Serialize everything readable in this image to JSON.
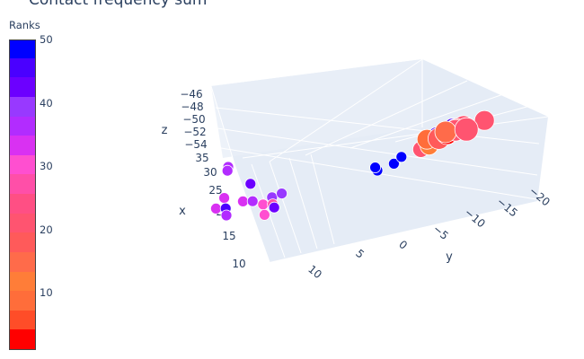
{
  "title": "Contact frequency sum",
  "colorbar": {
    "title": "Ranks",
    "ticks": [
      "50",
      "40",
      "30",
      "20",
      "10"
    ],
    "tick_values": [
      50,
      40,
      30,
      20,
      10
    ],
    "range": [
      1,
      50
    ],
    "colors": [
      "#ff0000",
      "#ff4d28",
      "#ff6d3a",
      "#ff7d38",
      "#ff6b4a",
      "#ff5a5a",
      "#ff5470",
      "#ff4f84",
      "#ff4fa8",
      "#ff4fd0",
      "#d931f2",
      "#b22cff",
      "#9839ff",
      "#6c00ff",
      "#4a00ff",
      "#0000ff"
    ]
  },
  "chart_data": {
    "type": "scatter3d",
    "title": "Contact frequency sum",
    "axes": {
      "x": {
        "label": "x",
        "ticks": [
          "10",
          "15",
          "20",
          "25",
          "30",
          "35"
        ]
      },
      "y": {
        "label": "y",
        "ticks": [
          "10",
          "5",
          "0",
          "−5",
          "−10",
          "−15",
          "−20"
        ]
      },
      "z": {
        "label": "z",
        "ticks": [
          "−46",
          "−48",
          "−50",
          "−52",
          "−54"
        ]
      }
    },
    "color_by": "Ranks",
    "points": [
      {
        "x": 10,
        "y": -12,
        "z": -46,
        "rank": 22,
        "size": 20
      },
      {
        "x": 11,
        "y": -13,
        "z": -47.5,
        "rank": 22,
        "size": 26
      },
      {
        "x": 11,
        "y": -15,
        "z": -47,
        "rank": 20,
        "size": 22
      },
      {
        "x": 12,
        "y": -10,
        "z": -48,
        "rank": 18,
        "size": 24
      },
      {
        "x": 13,
        "y": -11,
        "z": -48.6,
        "rank": 1,
        "size": 24
      },
      {
        "x": 13,
        "y": -12,
        "z": -48.4,
        "rank": 3,
        "size": 24
      },
      {
        "x": 13,
        "y": -13,
        "z": -49,
        "rank": 42,
        "size": 20
      },
      {
        "x": 14,
        "y": -10,
        "z": -49.4,
        "rank": 44,
        "size": 22
      },
      {
        "x": 14,
        "y": -12,
        "z": -49.6,
        "rank": 21,
        "size": 24
      },
      {
        "x": 15,
        "y": -11,
        "z": -50,
        "rank": 14,
        "size": 24
      },
      {
        "x": 15,
        "y": -13,
        "z": -50.2,
        "rank": 20,
        "size": 22
      },
      {
        "x": 16,
        "y": -9,
        "z": -51,
        "rank": 10,
        "size": 22
      },
      {
        "x": 16,
        "y": -11,
        "z": -51.4,
        "rank": 23,
        "size": 22
      },
      {
        "x": 17,
        "y": -12,
        "z": -51.8,
        "rank": 44,
        "size": 22
      },
      {
        "x": 12,
        "y": -8,
        "z": -49,
        "rank": 22,
        "size": 18
      },
      {
        "x": 13,
        "y": -9,
        "z": -50,
        "rank": 12,
        "size": 20
      },
      {
        "x": 11,
        "y": -5,
        "z": -49,
        "rank": 50,
        "size": 12
      },
      {
        "x": 12,
        "y": -5,
        "z": -50,
        "rank": 50,
        "size": 12
      },
      {
        "x": 14,
        "y": -6,
        "z": -51,
        "rank": 50,
        "size": 12
      },
      {
        "x": 10,
        "y": -3,
        "z": -48,
        "rank": 50,
        "size": 12
      },
      {
        "x": 13,
        "y": -3,
        "z": -50,
        "rank": 50,
        "size": 12
      },
      {
        "x": 30,
        "y": 12,
        "z": -51,
        "rank": 35,
        "size": 12
      },
      {
        "x": 31,
        "y": 12,
        "z": -53,
        "rank": 35,
        "size": 12
      },
      {
        "x": 24,
        "y": 10,
        "z": -52,
        "rank": 42,
        "size": 12
      },
      {
        "x": 23,
        "y": 13,
        "z": -52,
        "rank": 32,
        "size": 12
      },
      {
        "x": 22,
        "y": 14,
        "z": -53,
        "rank": 34,
        "size": 12
      },
      {
        "x": 21,
        "y": 13,
        "z": -53,
        "rank": 45,
        "size": 12
      },
      {
        "x": 20,
        "y": 13,
        "z": -54,
        "rank": 36,
        "size": 12
      },
      {
        "x": 22,
        "y": 11,
        "z": -54,
        "rank": 32,
        "size": 12
      },
      {
        "x": 21,
        "y": 10,
        "z": -54,
        "rank": 36,
        "size": 12
      },
      {
        "x": 19,
        "y": 8,
        "z": -53,
        "rank": 40,
        "size": 12
      },
      {
        "x": 18,
        "y": 7,
        "z": -52,
        "rank": 40,
        "size": 12
      },
      {
        "x": 19,
        "y": 9,
        "z": -54,
        "rank": 30,
        "size": 12
      },
      {
        "x": 18,
        "y": 8,
        "z": -54,
        "rank": 26,
        "size": 12
      },
      {
        "x": 16,
        "y": 8,
        "z": -53,
        "rank": 42,
        "size": 12
      },
      {
        "x": 17,
        "y": 9,
        "z": -55,
        "rank": 30,
        "size": 12
      }
    ]
  }
}
